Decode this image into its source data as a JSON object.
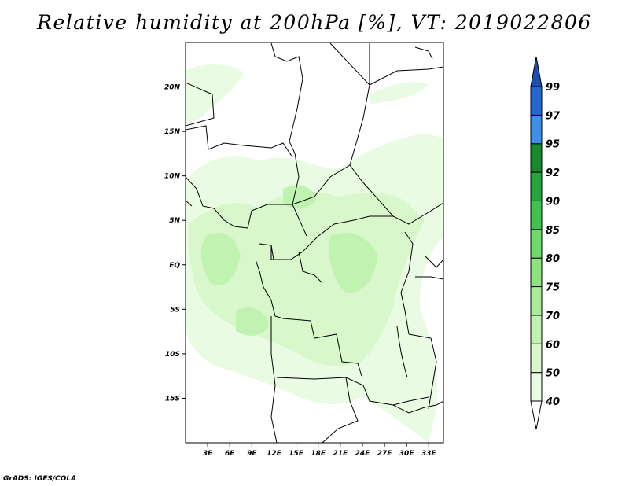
{
  "title": "Relative humidity at 200hPa [%], VT: 2019022806",
  "credit": "GrADS: IGES/COLA",
  "map": {
    "lon_range": [
      0,
      35
    ],
    "lat_range": [
      -20,
      25
    ],
    "x_ticks": [
      "3E",
      "6E",
      "9E",
      "12E",
      "15E",
      "18E",
      "21E",
      "24E",
      "27E",
      "30E",
      "33E"
    ],
    "x_tick_values": [
      3,
      6,
      9,
      12,
      15,
      18,
      21,
      24,
      27,
      30,
      33
    ],
    "y_ticks": [
      "20N",
      "15N",
      "10N",
      "5N",
      "EQ",
      "5S",
      "10S",
      "15S"
    ],
    "y_tick_values": [
      20,
      15,
      10,
      5,
      0,
      -5,
      -10,
      -15
    ]
  },
  "colorbar": {
    "levels": [
      "40",
      "50",
      "60",
      "70",
      "75",
      "80",
      "85",
      "90",
      "92",
      "95",
      "97",
      "99"
    ],
    "colors": [
      "#ffffff",
      "#eafbe4",
      "#d8f8cc",
      "#c0f2b0",
      "#a8ec96",
      "#8ee47c",
      "#6fd96a",
      "#3fc24f",
      "#26a63a",
      "#178a2b",
      "#3e8fe8",
      "#2469cf",
      "#1a4fb0"
    ]
  }
}
